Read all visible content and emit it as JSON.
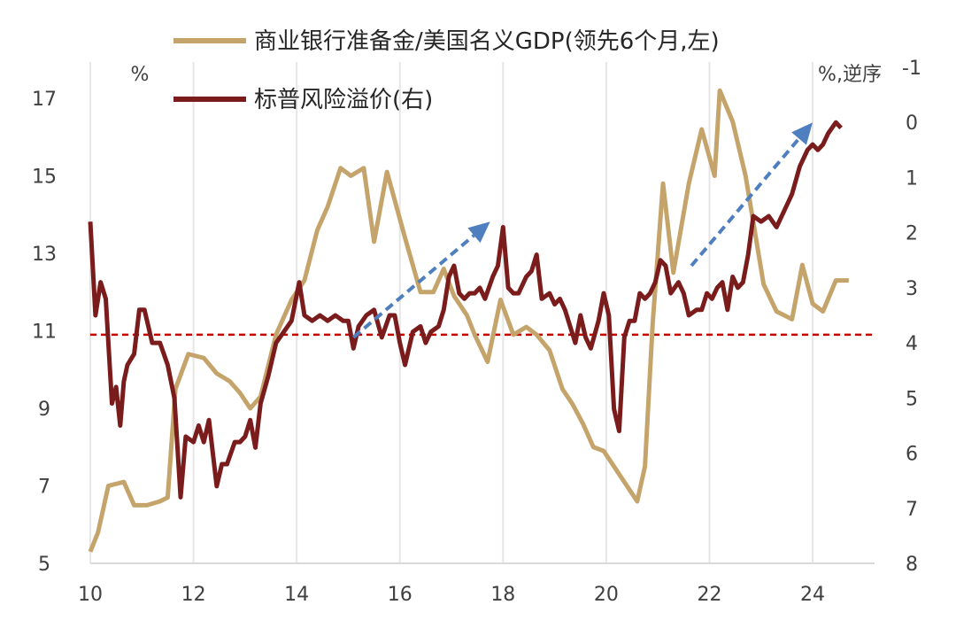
{
  "chart_data": {
    "type": "line",
    "title": "",
    "left_unit": "%",
    "right_unit": "%,逆序",
    "x_ticks": [
      "10",
      "12",
      "14",
      "16",
      "18",
      "20",
      "22",
      "24"
    ],
    "left_ticks": [
      "5",
      "7",
      "9",
      "11",
      "13",
      "15",
      "17"
    ],
    "right_ticks": [
      "-1",
      "0",
      "1",
      "2",
      "3",
      "4",
      "5",
      "6",
      "7",
      "8"
    ],
    "x_range": [
      2010,
      2025.2
    ],
    "left_range": [
      5,
      17.8
    ],
    "right_range": [
      -1,
      8
    ],
    "reference_line_left": 10.9,
    "colors": {
      "reserves": "#c4a46b",
      "risk": "#7b1c1c",
      "reference": "#c00000",
      "arrow": "#4f7fbf",
      "grid": "#e6e6e6"
    },
    "series": [
      {
        "name": "商业银行准备金/美国名义GDP(领先6个月,左)",
        "axis": "left",
        "x": [
          2010.0,
          2010.15,
          2010.35,
          2010.65,
          2010.85,
          2011.1,
          2011.35,
          2011.5,
          2011.65,
          2011.9,
          2012.2,
          2012.45,
          2012.7,
          2012.9,
          2013.1,
          2013.3,
          2013.6,
          2013.9,
          2014.15,
          2014.4,
          2014.6,
          2014.85,
          2015.05,
          2015.3,
          2015.5,
          2015.75,
          2016.1,
          2016.4,
          2016.65,
          2016.85,
          2017.05,
          2017.3,
          2017.45,
          2017.7,
          2017.95,
          2018.2,
          2018.45,
          2018.65,
          2018.9,
          2019.15,
          2019.35,
          2019.55,
          2019.75,
          2019.95,
          2020.15,
          2020.4,
          2020.6,
          2020.75,
          2020.9,
          2021.1,
          2021.3,
          2021.6,
          2021.85,
          2022.1,
          2022.2,
          2022.45,
          2022.7,
          2022.85,
          2023.05,
          2023.3,
          2023.6,
          2023.8,
          2024.0,
          2024.2,
          2024.45,
          2024.7
        ],
        "values": [
          5.3,
          5.8,
          7.0,
          7.1,
          6.5,
          6.5,
          6.6,
          6.7,
          9.5,
          10.4,
          10.3,
          9.9,
          9.7,
          9.4,
          9.0,
          9.3,
          10.9,
          11.8,
          12.3,
          13.6,
          14.2,
          15.2,
          15.0,
          15.2,
          13.3,
          15.1,
          13.4,
          12.0,
          12.0,
          12.6,
          11.9,
          11.4,
          10.9,
          10.2,
          11.8,
          10.9,
          11.1,
          10.9,
          10.5,
          9.5,
          9.1,
          8.6,
          8.0,
          7.9,
          7.5,
          7.0,
          6.6,
          7.5,
          11.2,
          14.8,
          12.5,
          14.8,
          16.2,
          15.0,
          17.2,
          16.4,
          15.0,
          13.8,
          12.2,
          11.5,
          11.3,
          12.7,
          11.7,
          11.5,
          12.3,
          12.3
        ]
      },
      {
        "name": "标普风险溢价(右)",
        "axis": "right",
        "x": [
          2010.0,
          2010.1,
          2010.2,
          2010.3,
          2010.42,
          2010.5,
          2010.58,
          2010.65,
          2010.72,
          2010.85,
          2010.95,
          2011.05,
          2011.2,
          2011.35,
          2011.5,
          2011.63,
          2011.75,
          2011.85,
          2012.0,
          2012.1,
          2012.2,
          2012.3,
          2012.45,
          2012.55,
          2012.65,
          2012.8,
          2012.9,
          2013.0,
          2013.1,
          2013.2,
          2013.3,
          2013.45,
          2013.6,
          2013.75,
          2013.9,
          2014.05,
          2014.15,
          2014.3,
          2014.45,
          2014.6,
          2014.75,
          2014.9,
          2015.0,
          2015.1,
          2015.2,
          2015.35,
          2015.5,
          2015.65,
          2015.8,
          2015.9,
          2016.0,
          2016.1,
          2016.25,
          2016.4,
          2016.5,
          2016.6,
          2016.75,
          2016.85,
          2016.95,
          2017.05,
          2017.15,
          2017.25,
          2017.35,
          2017.45,
          2017.55,
          2017.65,
          2017.8,
          2017.9,
          2018.0,
          2018.1,
          2018.2,
          2018.3,
          2018.45,
          2018.55,
          2018.65,
          2018.75,
          2018.9,
          2019.0,
          2019.1,
          2019.2,
          2019.3,
          2019.4,
          2019.5,
          2019.6,
          2019.7,
          2019.85,
          2019.95,
          2020.05,
          2020.15,
          2020.25,
          2020.35,
          2020.45,
          2020.55,
          2020.65,
          2020.75,
          2020.85,
          2020.95,
          2021.05,
          2021.15,
          2021.25,
          2021.4,
          2021.5,
          2021.6,
          2021.75,
          2021.85,
          2021.95,
          2022.05,
          2022.15,
          2022.25,
          2022.35,
          2022.45,
          2022.55,
          2022.65,
          2022.75,
          2022.85,
          2023.0,
          2023.15,
          2023.3,
          2023.45,
          2023.6,
          2023.75,
          2023.9,
          2024.0,
          2024.1,
          2024.2,
          2024.3,
          2024.45,
          2024.55
        ],
        "values": [
          1.8,
          3.5,
          2.9,
          3.2,
          5.1,
          4.8,
          5.5,
          4.7,
          4.4,
          4.2,
          3.4,
          3.4,
          4.0,
          4.0,
          4.4,
          5.0,
          6.8,
          5.7,
          5.8,
          5.5,
          5.8,
          5.4,
          6.6,
          6.2,
          6.2,
          5.8,
          5.8,
          5.7,
          5.4,
          5.9,
          5.1,
          4.6,
          4.0,
          3.8,
          3.6,
          2.9,
          3.5,
          3.6,
          3.5,
          3.6,
          3.5,
          3.6,
          3.6,
          4.1,
          3.7,
          3.5,
          3.4,
          3.9,
          3.5,
          3.5,
          4.0,
          4.4,
          3.8,
          3.7,
          4.0,
          3.8,
          3.7,
          3.4,
          2.8,
          2.6,
          3.1,
          3.2,
          3.1,
          3.1,
          3.0,
          3.2,
          2.8,
          2.6,
          1.9,
          3.0,
          3.1,
          3.1,
          2.8,
          2.7,
          2.4,
          3.2,
          3.1,
          3.3,
          3.2,
          3.4,
          3.7,
          4.0,
          3.5,
          3.9,
          4.1,
          3.6,
          3.1,
          3.5,
          5.2,
          5.6,
          3.9,
          3.6,
          3.6,
          3.1,
          3.2,
          3.1,
          2.9,
          2.5,
          2.6,
          3.1,
          2.9,
          3.1,
          3.5,
          3.4,
          3.4,
          3.1,
          3.2,
          3.0,
          2.9,
          3.4,
          2.8,
          3.0,
          2.9,
          2.4,
          1.7,
          1.8,
          1.7,
          1.9,
          1.6,
          1.3,
          0.8,
          0.5,
          0.4,
          0.5,
          0.4,
          0.2,
          0.0,
          0.1
        ]
      }
    ],
    "trend_arrows": [
      {
        "x": [
          2015.1,
          2017.75
        ],
        "right_values": [
          3.9,
          1.8
        ]
      },
      {
        "x": [
          2021.65,
          2024.0
        ],
        "right_values": [
          2.6,
          0.0
        ]
      }
    ],
    "legend_position": "top-center",
    "grid": "vertical"
  }
}
